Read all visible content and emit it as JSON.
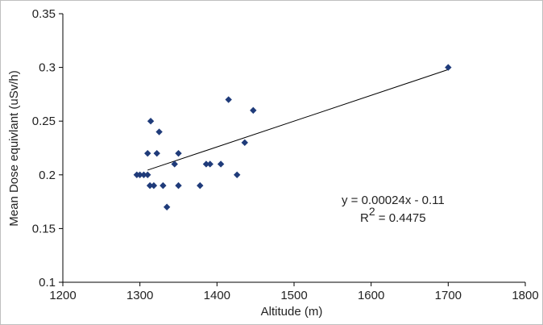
{
  "chart_data": {
    "type": "scatter",
    "title": "",
    "xlabel": "Altitude (m)",
    "ylabel": "Mean Dose equivlant (uSv/h)",
    "xlim": [
      1200,
      1800
    ],
    "ylim": [
      0.1,
      0.35
    ],
    "xticks": [
      "1200",
      "1300",
      "1400",
      "1500",
      "1600",
      "1700",
      "1800"
    ],
    "yticks": [
      "0.1",
      "0.15",
      "0.2",
      "0.25",
      "0.3",
      "0.35"
    ],
    "grid": false,
    "legend": "none",
    "marker_color": "#1f3b7a",
    "series": [
      {
        "points": [
          [
            1296,
            0.2
          ],
          [
            1300,
            0.2
          ],
          [
            1305,
            0.2
          ],
          [
            1310,
            0.2
          ],
          [
            1310,
            0.22
          ],
          [
            1313,
            0.19
          ],
          [
            1314,
            0.25
          ],
          [
            1318,
            0.19
          ],
          [
            1322,
            0.22
          ],
          [
            1325,
            0.24
          ],
          [
            1330,
            0.19
          ],
          [
            1335,
            0.17
          ],
          [
            1345,
            0.21
          ],
          [
            1350,
            0.22
          ],
          [
            1350,
            0.19
          ],
          [
            1378,
            0.19
          ],
          [
            1386,
            0.21
          ],
          [
            1391,
            0.21
          ],
          [
            1405,
            0.21
          ],
          [
            1415,
            0.27
          ],
          [
            1426,
            0.2
          ],
          [
            1436,
            0.23
          ],
          [
            1447,
            0.26
          ],
          [
            1700,
            0.3
          ]
        ]
      }
    ],
    "trendline": {
      "slope": 0.00024,
      "intercept": -0.11,
      "x_range": [
        1310,
        1700
      ]
    },
    "annotations": {
      "equation": "y = 0.00024x - 0.11",
      "r2_label": "R",
      "r2_sup": "2",
      "r2_value": " = 0.4475"
    }
  }
}
